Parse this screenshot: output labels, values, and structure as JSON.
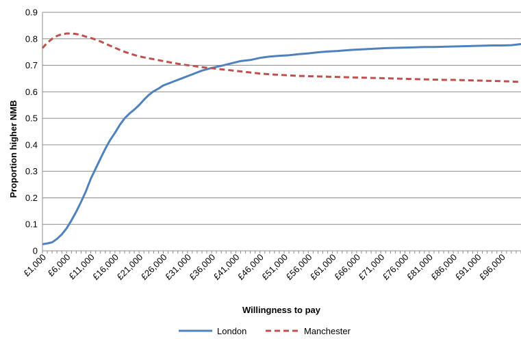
{
  "chart_data": {
    "type": "line",
    "title": "",
    "xlabel": "Willingness to pay",
    "ylabel": "Proportion higher NMB",
    "ylim": [
      0,
      0.9
    ],
    "yticks": [
      0,
      0.1,
      0.2,
      0.3,
      0.4,
      0.5,
      0.6,
      0.7,
      0.8,
      0.9
    ],
    "ytick_labels": [
      "0",
      "0.1",
      "0.2",
      "0.3",
      "0.4",
      "0.5",
      "0.6",
      "0.7",
      "0.8",
      "0.9"
    ],
    "xlim": [
      1000,
      100000
    ],
    "xticks": [
      1000,
      6000,
      11000,
      16000,
      21000,
      26000,
      31000,
      36000,
      41000,
      46000,
      51000,
      56000,
      61000,
      66000,
      71000,
      76000,
      81000,
      86000,
      91000,
      96000
    ],
    "xtick_labels": [
      "£1,000",
      "£6,000",
      "£11,000",
      "£16,000",
      "£21,000",
      "£26,000",
      "£31,000",
      "£36,000",
      "£41,000",
      "£46,000",
      "£51,000",
      "£56,000",
      "£61,000",
      "£66,000",
      "£71,000",
      "£76,000",
      "£81,000",
      "£86,000",
      "£91,000",
      "£96,000"
    ],
    "grid": "horizontal",
    "legend_position": "bottom",
    "series": [
      {
        "name": "London",
        "color": "#4f81bd",
        "style": "solid",
        "points": [
          [
            1000,
            0.025
          ],
          [
            2000,
            0.028
          ],
          [
            3000,
            0.032
          ],
          [
            4000,
            0.045
          ],
          [
            5000,
            0.062
          ],
          [
            6000,
            0.085
          ],
          [
            7000,
            0.115
          ],
          [
            8000,
            0.148
          ],
          [
            9000,
            0.185
          ],
          [
            10000,
            0.225
          ],
          [
            11000,
            0.272
          ],
          [
            12000,
            0.31
          ],
          [
            13000,
            0.348
          ],
          [
            14000,
            0.385
          ],
          [
            15000,
            0.418
          ],
          [
            16000,
            0.445
          ],
          [
            17000,
            0.475
          ],
          [
            18000,
            0.5
          ],
          [
            19000,
            0.518
          ],
          [
            20000,
            0.533
          ],
          [
            21000,
            0.55
          ],
          [
            22000,
            0.57
          ],
          [
            23000,
            0.588
          ],
          [
            24000,
            0.602
          ],
          [
            25000,
            0.612
          ],
          [
            26000,
            0.624
          ],
          [
            28000,
            0.638
          ],
          [
            30000,
            0.652
          ],
          [
            32000,
            0.666
          ],
          [
            34000,
            0.68
          ],
          [
            36000,
            0.69
          ],
          [
            38000,
            0.698
          ],
          [
            40000,
            0.707
          ],
          [
            42000,
            0.716
          ],
          [
            44000,
            0.72
          ],
          [
            46000,
            0.728
          ],
          [
            48000,
            0.733
          ],
          [
            50000,
            0.736
          ],
          [
            52000,
            0.738
          ],
          [
            54000,
            0.742
          ],
          [
            56000,
            0.745
          ],
          [
            58000,
            0.749
          ],
          [
            60000,
            0.752
          ],
          [
            62000,
            0.754
          ],
          [
            64000,
            0.757
          ],
          [
            66000,
            0.759
          ],
          [
            68000,
            0.761
          ],
          [
            70000,
            0.763
          ],
          [
            72000,
            0.765
          ],
          [
            74000,
            0.766
          ],
          [
            76000,
            0.767
          ],
          [
            78000,
            0.768
          ],
          [
            80000,
            0.769
          ],
          [
            82000,
            0.769
          ],
          [
            84000,
            0.77
          ],
          [
            86000,
            0.771
          ],
          [
            88000,
            0.772
          ],
          [
            90000,
            0.773
          ],
          [
            92000,
            0.774
          ],
          [
            94000,
            0.775
          ],
          [
            96000,
            0.775
          ],
          [
            98000,
            0.776
          ],
          [
            100000,
            0.78
          ]
        ]
      },
      {
        "name": "Manchester",
        "color": "#c0504d",
        "style": "dashed",
        "points": [
          [
            1000,
            0.765
          ],
          [
            2000,
            0.785
          ],
          [
            3000,
            0.8
          ],
          [
            4000,
            0.811
          ],
          [
            5000,
            0.817
          ],
          [
            6000,
            0.82
          ],
          [
            7000,
            0.82
          ],
          [
            8000,
            0.818
          ],
          [
            9000,
            0.814
          ],
          [
            10000,
            0.808
          ],
          [
            11000,
            0.803
          ],
          [
            12000,
            0.797
          ],
          [
            13000,
            0.79
          ],
          [
            14000,
            0.782
          ],
          [
            15000,
            0.774
          ],
          [
            16000,
            0.766
          ],
          [
            17000,
            0.758
          ],
          [
            18000,
            0.751
          ],
          [
            19000,
            0.745
          ],
          [
            20000,
            0.739
          ],
          [
            21000,
            0.734
          ],
          [
            22000,
            0.73
          ],
          [
            24000,
            0.723
          ],
          [
            26000,
            0.716
          ],
          [
            28000,
            0.709
          ],
          [
            30000,
            0.703
          ],
          [
            32000,
            0.698
          ],
          [
            34000,
            0.693
          ],
          [
            36000,
            0.689
          ],
          [
            38000,
            0.685
          ],
          [
            40000,
            0.681
          ],
          [
            42000,
            0.677
          ],
          [
            44000,
            0.673
          ],
          [
            46000,
            0.669
          ],
          [
            48000,
            0.666
          ],
          [
            50000,
            0.664
          ],
          [
            52000,
            0.662
          ],
          [
            54000,
            0.66
          ],
          [
            56000,
            0.659
          ],
          [
            58000,
            0.658
          ],
          [
            60000,
            0.657
          ],
          [
            62000,
            0.656
          ],
          [
            64000,
            0.655
          ],
          [
            66000,
            0.654
          ],
          [
            68000,
            0.653
          ],
          [
            70000,
            0.652
          ],
          [
            72000,
            0.651
          ],
          [
            74000,
            0.65
          ],
          [
            76000,
            0.649
          ],
          [
            78000,
            0.648
          ],
          [
            80000,
            0.647
          ],
          [
            82000,
            0.646
          ],
          [
            84000,
            0.645
          ],
          [
            86000,
            0.645
          ],
          [
            88000,
            0.644
          ],
          [
            90000,
            0.643
          ],
          [
            92000,
            0.642
          ],
          [
            94000,
            0.641
          ],
          [
            96000,
            0.64
          ],
          [
            98000,
            0.639
          ],
          [
            100000,
            0.637
          ]
        ]
      }
    ]
  }
}
